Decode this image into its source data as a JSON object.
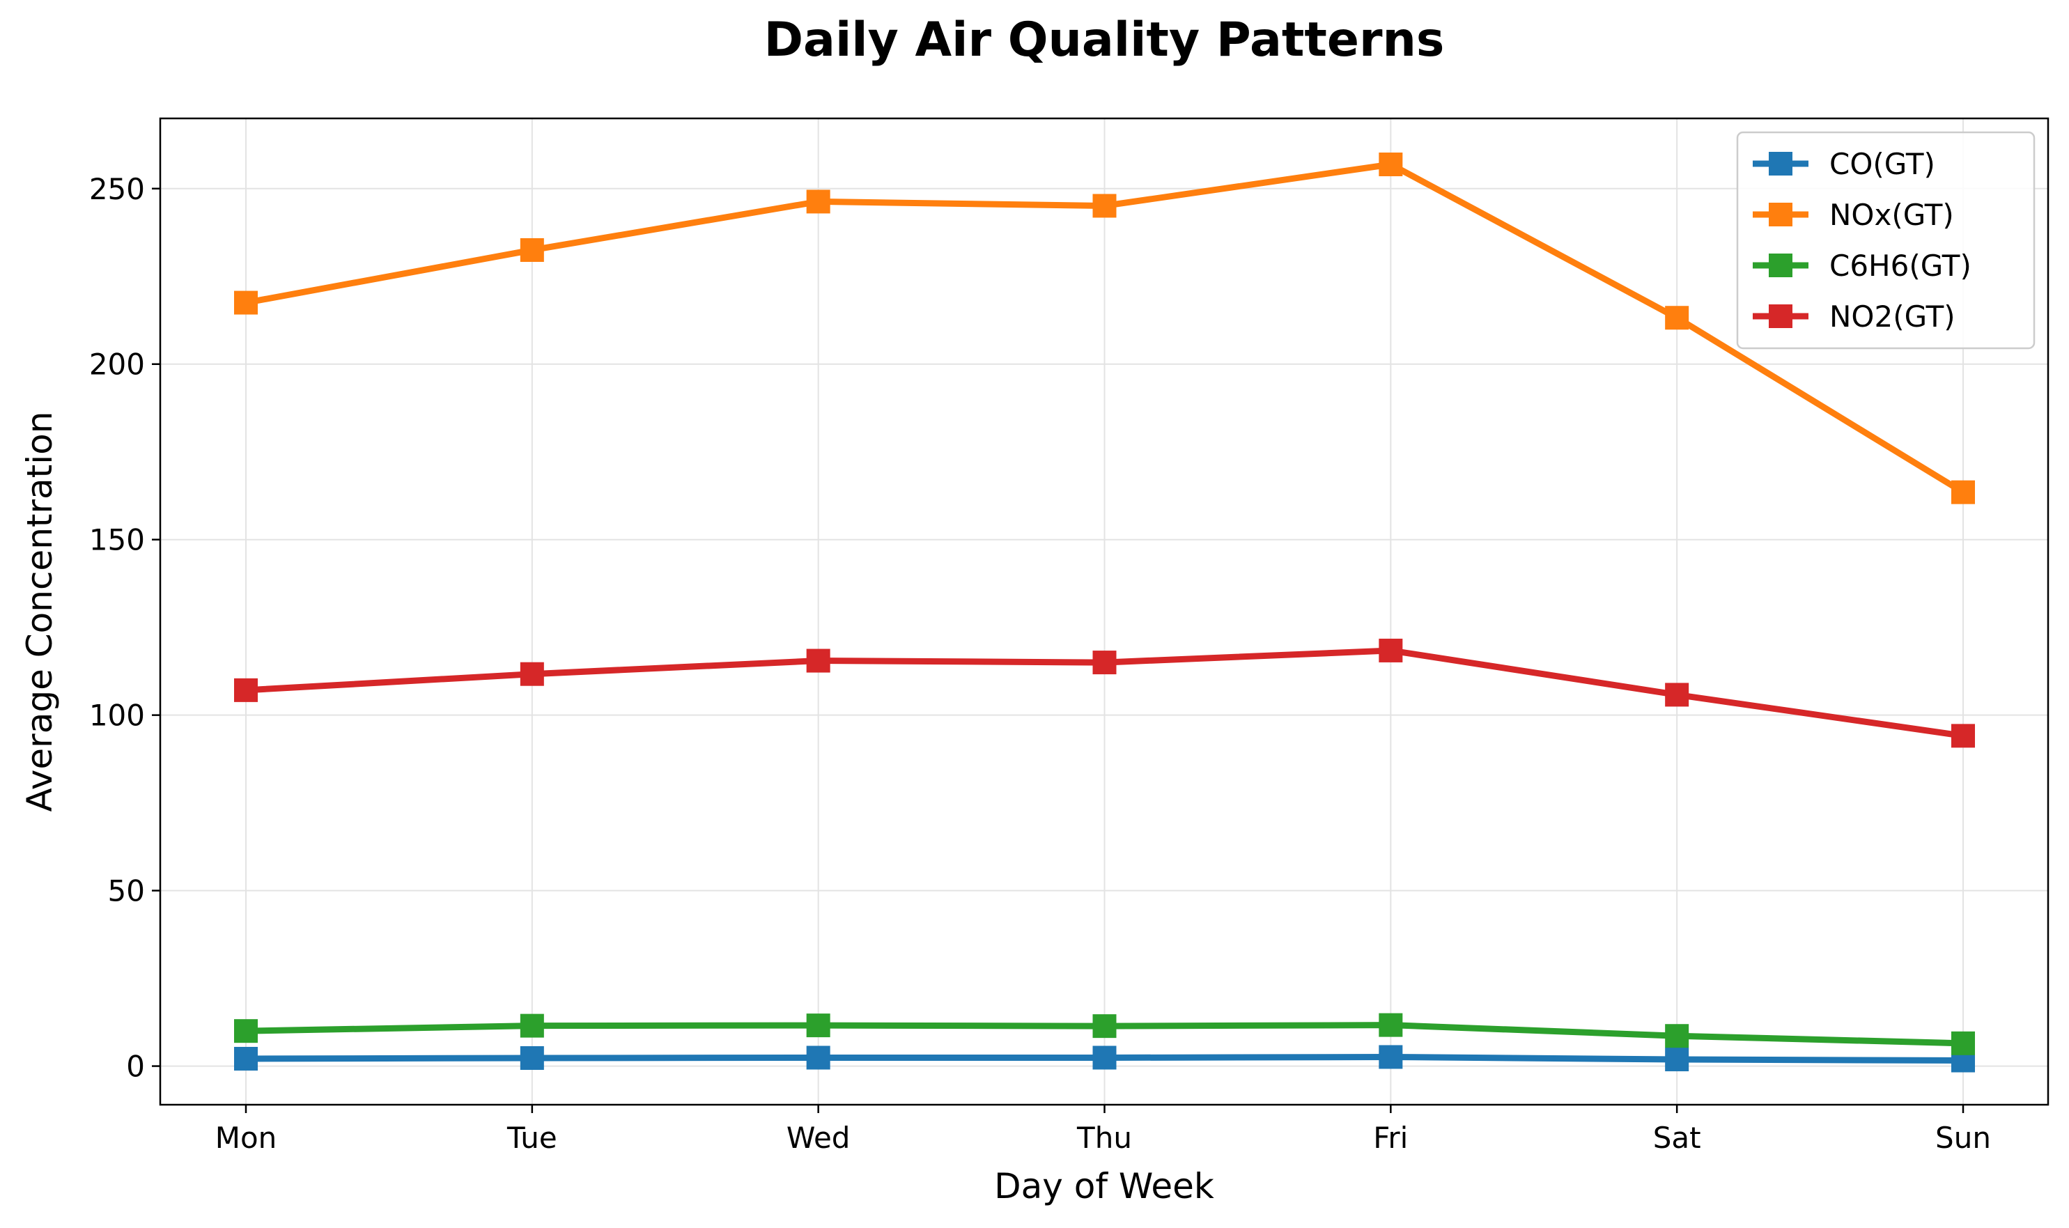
{
  "chart_data": {
    "type": "line",
    "title": "Daily Air Quality Patterns",
    "xlabel": "Day of Week",
    "ylabel": "Average Concentration",
    "categories": [
      "Mon",
      "Tue",
      "Wed",
      "Thu",
      "Fri",
      "Sat",
      "Sun"
    ],
    "ylim": [
      -11,
      270
    ],
    "yticks": [
      0,
      50,
      100,
      150,
      200,
      250
    ],
    "grid": true,
    "legend_position": "top-right",
    "marker": "square",
    "series": [
      {
        "name": "CO(GT)",
        "color": "#1f77b4",
        "values": [
          2.1,
          2.3,
          2.4,
          2.4,
          2.6,
          1.9,
          1.6
        ]
      },
      {
        "name": "NOx(GT)",
        "color": "#ff7f0e",
        "values": [
          217.5,
          232.5,
          246.3,
          245.1,
          256.9,
          213.2,
          163.5
        ]
      },
      {
        "name": "C6H6(GT)",
        "color": "#2ca02c",
        "values": [
          10.0,
          11.5,
          11.6,
          11.4,
          11.7,
          8.6,
          6.5
        ]
      },
      {
        "name": "NO2(GT)",
        "color": "#d62728",
        "values": [
          107.1,
          111.7,
          115.5,
          115.0,
          118.4,
          105.8,
          94.1
        ]
      }
    ]
  }
}
